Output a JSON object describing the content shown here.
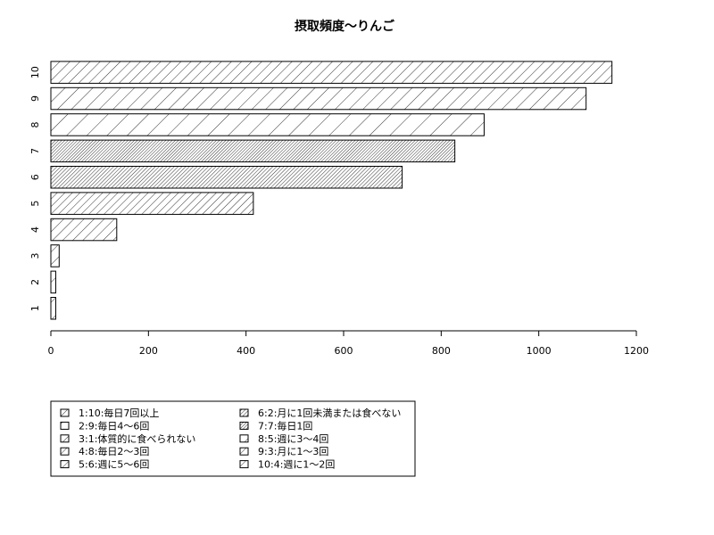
{
  "chart_data": {
    "type": "bar",
    "orientation": "horizontal",
    "title": "摂取頻度〜りんご",
    "xlabel": "",
    "ylabel": "",
    "xlim": [
      0,
      1200
    ],
    "x_ticks": [
      "0",
      "200",
      "400",
      "600",
      "800",
      "1000",
      "1200"
    ],
    "categories": [
      "1",
      "2",
      "3",
      "4",
      "5",
      "6",
      "7",
      "8",
      "9",
      "10"
    ],
    "values": [
      10,
      10,
      17,
      135,
      415,
      720,
      828,
      888,
      1097,
      1150
    ],
    "grid": false,
    "legend_placement": "bottom-left",
    "legend": [
      "1:10:毎日7回以上",
      "2:9:毎日4〜6回",
      "3:1:体質的に食べられない",
      "4:8:毎日2〜3回",
      "5:6:週に5〜6回",
      "6:2:月に1回未満または食べない",
      "7:7:毎日1回",
      "8:5:週に3〜4回",
      "9:3:月に1〜3回",
      "10:4:週に1〜2回"
    ]
  }
}
